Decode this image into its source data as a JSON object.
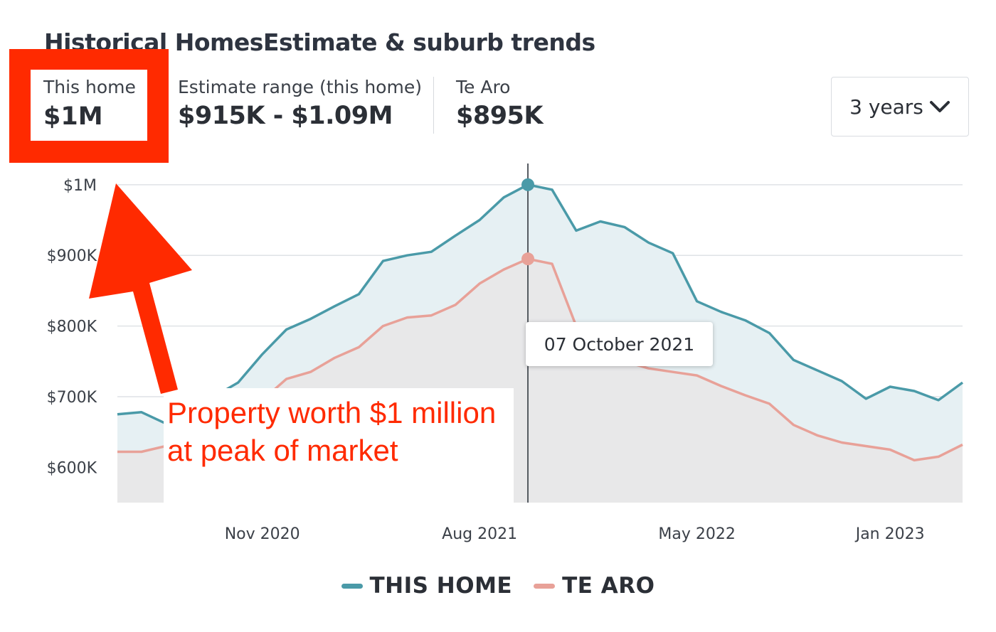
{
  "header": {
    "title": "Historical HomesEstimate & suburb trends",
    "this_home_label": "This home",
    "this_home_value": "$1M",
    "range_label": "Estimate range (this home)",
    "range_value": "$915K - $1.09M",
    "suburb_label": "Te Aro",
    "suburb_value": "$895K",
    "period_select": "3 years"
  },
  "tooltip": {
    "date": "07 October 2021"
  },
  "annotation": {
    "text": "Property worth $1 million at peak of market",
    "highlight_color": "#ff2a00"
  },
  "colors": {
    "this_home": "#4a9aa8",
    "te_aro": "#e8a198",
    "this_home_fill": "#e6f0f3",
    "te_aro_fill": "#e8e8e9",
    "annotation": "#ff2a00"
  },
  "chart_data": {
    "type": "area",
    "y_tick_labels": [
      "$1M",
      "$900K",
      "$800K",
      "$700K",
      "$600K"
    ],
    "y_ticks": [
      1000,
      900,
      800,
      700,
      600
    ],
    "ylim": [
      550,
      1030
    ],
    "x_tick_labels": [
      "Nov 2020",
      "Aug 2021",
      "May 2022",
      "Jan 2023"
    ],
    "x_ticks": [
      "2020-11",
      "2021-08",
      "2022-05",
      "2023-01"
    ],
    "x_range": [
      "2020-05",
      "2023-04"
    ],
    "grid": true,
    "legend_position": "bottom",
    "highlight": {
      "x": "2021-10",
      "this_home": 1000,
      "te_aro": 895
    },
    "series": [
      {
        "name": "THIS HOME",
        "x": [
          "2020-05",
          "2020-06",
          "2020-07",
          "2020-08",
          "2020-09",
          "2020-10",
          "2020-11",
          "2020-12",
          "2021-01",
          "2021-02",
          "2021-03",
          "2021-04",
          "2021-05",
          "2021-06",
          "2021-07",
          "2021-08",
          "2021-09",
          "2021-10",
          "2021-11",
          "2021-12",
          "2022-01",
          "2022-02",
          "2022-03",
          "2022-04",
          "2022-05",
          "2022-06",
          "2022-07",
          "2022-08",
          "2022-09",
          "2022-10",
          "2022-11",
          "2022-12",
          "2023-01",
          "2023-02",
          "2023-03",
          "2023-04"
        ],
        "values": [
          675,
          678,
          662,
          672,
          700,
          720,
          760,
          795,
          810,
          828,
          845,
          892,
          900,
          905,
          928,
          950,
          982,
          1000,
          993,
          935,
          948,
          940,
          918,
          903,
          835,
          820,
          808,
          790,
          752,
          737,
          722,
          697,
          714,
          708,
          695,
          720
        ]
      },
      {
        "name": "TE ARO",
        "x": [
          "2020-05",
          "2020-06",
          "2020-07",
          "2020-08",
          "2020-09",
          "2020-10",
          "2020-11",
          "2020-12",
          "2021-01",
          "2021-02",
          "2021-03",
          "2021-04",
          "2021-05",
          "2021-06",
          "2021-07",
          "2021-08",
          "2021-09",
          "2021-10",
          "2021-11",
          "2021-12",
          "2022-01",
          "2022-02",
          "2022-03",
          "2022-04",
          "2022-05",
          "2022-06",
          "2022-07",
          "2022-08",
          "2022-09",
          "2022-10",
          "2022-11",
          "2022-12",
          "2023-01",
          "2023-02",
          "2023-03",
          "2023-04"
        ],
        "values": [
          622,
          622,
          630,
          640,
          650,
          668,
          695,
          725,
          735,
          755,
          770,
          800,
          812,
          815,
          830,
          860,
          880,
          895,
          888,
          800,
          770,
          750,
          740,
          735,
          730,
          715,
          702,
          690,
          660,
          645,
          635,
          630,
          625,
          610,
          615,
          632
        ]
      }
    ]
  }
}
